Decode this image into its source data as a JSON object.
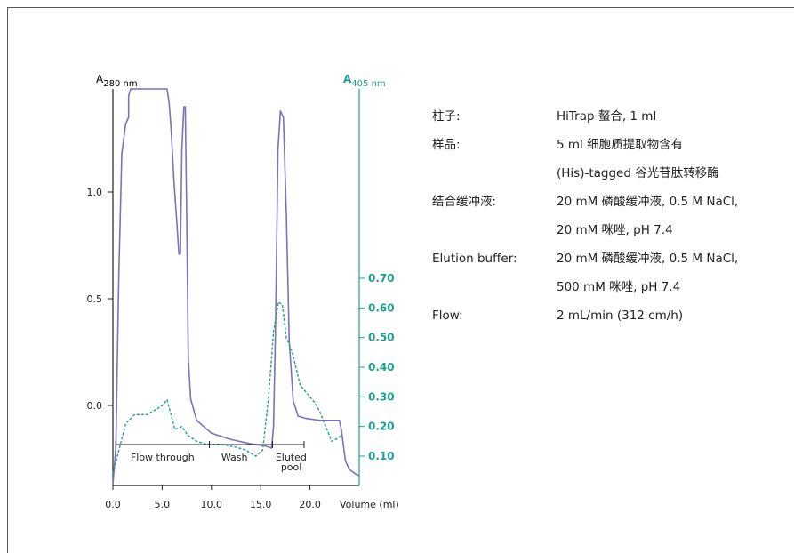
{
  "chart_data": {
    "type": "line",
    "left_axis_label": "A",
    "left_axis_sub": "280 nm",
    "right_axis_label": "A",
    "right_axis_sub": "405 nm",
    "xlabel": "Volume (ml)",
    "xlim": [
      0,
      25
    ],
    "ylim_left": [
      -0.38,
      1.45
    ],
    "ylim_right": [
      0.02,
      1.15
    ],
    "x_ticks": [
      {
        "value": 0,
        "label": "0.0"
      },
      {
        "value": 5,
        "label": "5.0"
      },
      {
        "value": 10,
        "label": "10.0"
      },
      {
        "value": 15,
        "label": "15.0"
      },
      {
        "value": 20,
        "label": "20.0"
      }
    ],
    "left_ticks": [
      {
        "value": 0.0,
        "label": "0.0"
      },
      {
        "value": 0.5,
        "label": "0.5"
      },
      {
        "value": 1.0,
        "label": "1.0"
      }
    ],
    "right_ticks": [
      {
        "value": 0.1,
        "label": "0.10"
      },
      {
        "value": 0.2,
        "label": "0.20"
      },
      {
        "value": 0.3,
        "label": "0.30"
      },
      {
        "value": 0.4,
        "label": "0.40"
      },
      {
        "value": 0.5,
        "label": "0.50"
      },
      {
        "value": 0.6,
        "label": "0.60"
      },
      {
        "value": 0.7,
        "label": "0.70"
      }
    ],
    "regions": [
      {
        "label": "Flow through",
        "start": 0.3,
        "end": 9.8
      },
      {
        "label": "Wash",
        "start": 9.8,
        "end": 16.2
      },
      {
        "label": "Eluted pool",
        "start": 16.2,
        "end": 19.4
      }
    ],
    "series": [
      {
        "axis": "left",
        "color": "#7b72b8",
        "style": "solid",
        "points": [
          [
            0,
            -0.37
          ],
          [
            0.3,
            -0.2
          ],
          [
            0.6,
            0.6
          ],
          [
            0.9,
            1.18
          ],
          [
            1.3,
            1.32
          ],
          [
            1.6,
            1.35
          ],
          [
            1.6,
            1.45
          ],
          [
            1.8,
            1.5
          ],
          [
            5.5,
            1.5
          ],
          [
            5.7,
            1.42
          ],
          [
            5.9,
            1.3
          ],
          [
            6.2,
            1.05
          ],
          [
            6.5,
            0.85
          ],
          [
            6.7,
            0.71
          ],
          [
            6.85,
            0.71
          ],
          [
            7.0,
            1.2
          ],
          [
            7.2,
            1.4
          ],
          [
            7.35,
            1.4
          ],
          [
            7.5,
            0.85
          ],
          [
            7.65,
            0.22
          ],
          [
            7.9,
            0.03
          ],
          [
            8.5,
            -0.07
          ],
          [
            10.0,
            -0.13
          ],
          [
            12.0,
            -0.16
          ],
          [
            14.0,
            -0.18
          ],
          [
            15.5,
            -0.19
          ],
          [
            16.1,
            -0.2
          ],
          [
            16.3,
            -0.1
          ],
          [
            16.5,
            0.35
          ],
          [
            16.75,
            1.2
          ],
          [
            17.0,
            1.38
          ],
          [
            17.3,
            1.35
          ],
          [
            17.6,
            0.9
          ],
          [
            17.9,
            0.3
          ],
          [
            18.3,
            0.02
          ],
          [
            18.8,
            -0.05
          ],
          [
            19.5,
            -0.06
          ],
          [
            21.0,
            -0.07
          ],
          [
            23.0,
            -0.07
          ],
          [
            23.2,
            -0.12
          ],
          [
            23.6,
            -0.26
          ],
          [
            24.0,
            -0.3
          ],
          [
            24.6,
            -0.32
          ],
          [
            25,
            -0.33
          ]
        ]
      },
      {
        "axis": "right",
        "color": "#1e9e8e",
        "style": "dashed",
        "points": [
          [
            0,
            0.04
          ],
          [
            1.3,
            0.21
          ],
          [
            2.2,
            0.24
          ],
          [
            3.5,
            0.24
          ],
          [
            5.0,
            0.27
          ],
          [
            5.5,
            0.29
          ],
          [
            6.3,
            0.19
          ],
          [
            7.0,
            0.2
          ],
          [
            7.6,
            0.17
          ],
          [
            8.5,
            0.15
          ],
          [
            9.5,
            0.14
          ],
          [
            11.0,
            0.14
          ],
          [
            12.5,
            0.13
          ],
          [
            13.5,
            0.12
          ],
          [
            14.5,
            0.1
          ],
          [
            15.2,
            0.12
          ],
          [
            15.8,
            0.3
          ],
          [
            16.3,
            0.52
          ],
          [
            16.8,
            0.62
          ],
          [
            17.2,
            0.61
          ],
          [
            17.6,
            0.5
          ],
          [
            18.2,
            0.45
          ],
          [
            19.0,
            0.34
          ],
          [
            20.5,
            0.28
          ],
          [
            21.0,
            0.25
          ],
          [
            22.2,
            0.15
          ],
          [
            22.8,
            0.16
          ],
          [
            23.2,
            0.17
          ]
        ]
      }
    ]
  },
  "info": {
    "rows": [
      {
        "label": "柱子:",
        "value": "HiTrap 螯合, 1 ml"
      },
      {
        "label": "样品:",
        "value": "5 ml 细胞质提取物含有"
      },
      {
        "label": "",
        "value": "(His)-tagged 谷光苷肽转移酶"
      },
      {
        "label": "结合缓冲液:",
        "value": "20 mM 磷酸缓冲液, 0.5 M NaCl,"
      },
      {
        "label": "",
        "value": "20 mM 咪唑, pH 7.4"
      },
      {
        "label": "Elution buffer:",
        "value": "20 mM 磷酸缓冲液, 0.5 M NaCl,"
      },
      {
        "label": "",
        "value": "500 mM 咪唑, pH 7.4"
      },
      {
        "label": "Flow:",
        "value": "2 mL/min (312 cm/h)"
      }
    ]
  },
  "colors": {
    "a280": "#7b72b8",
    "a405": "#1e9e8e",
    "axis": "#222222",
    "frame": "#555555"
  }
}
